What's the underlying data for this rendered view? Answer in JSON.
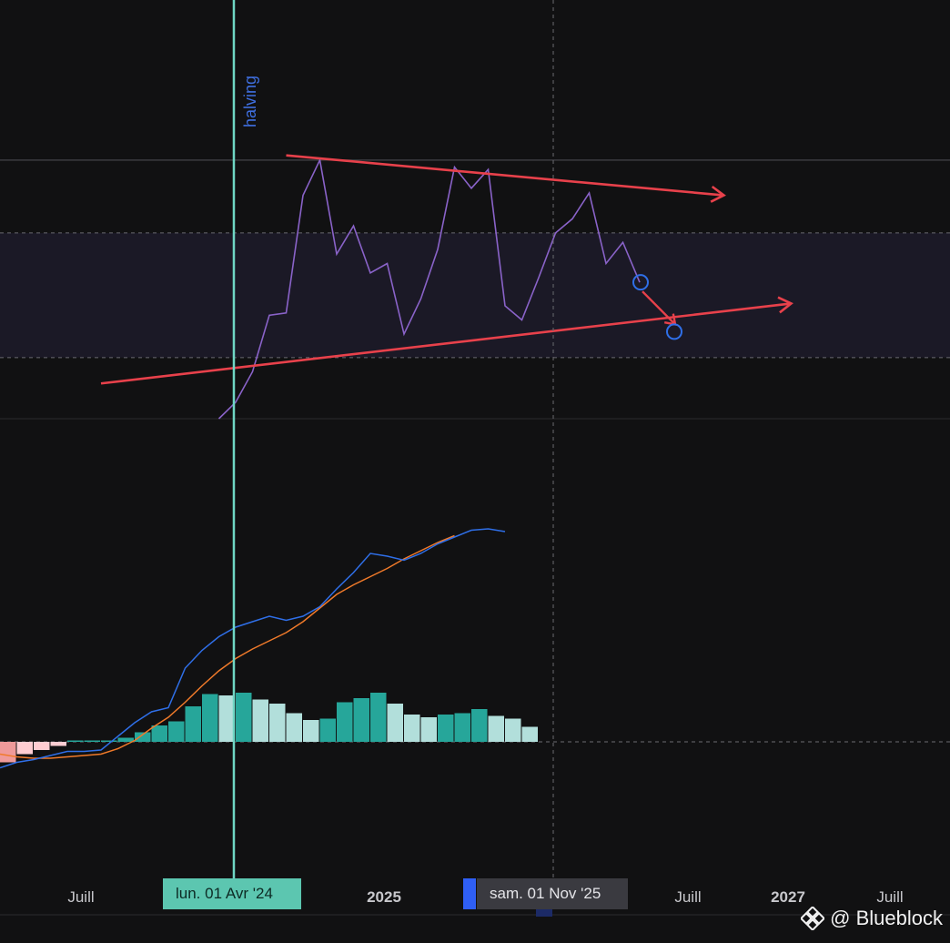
{
  "colors": {
    "background": "#111112",
    "oscillator_line": "#8a63c9",
    "oscillator_band": "#1b1926",
    "trendline": "#e8414b",
    "marker": "#2f6fe8",
    "halving_line": "#6fd6c4",
    "macd_line": "#2f6fe8",
    "signal_line": "#f07a2a",
    "hist_pos_strong": "#26a69a",
    "hist_pos_weak": "#b2dfdb",
    "hist_neg_weak": "#ffcdd2",
    "hist_neg_strong": "#ef9a9a"
  },
  "annotation": {
    "halving_label": "halving"
  },
  "x_axis": {
    "tick_labels": [
      {
        "text": "Juill",
        "bold": false
      },
      {
        "text": "2025",
        "bold": true
      },
      {
        "text": "Juill",
        "bold": false
      },
      {
        "text": "2027",
        "bold": true
      },
      {
        "text": "Juill",
        "bold": false
      }
    ],
    "halving_date_tag": "lun. 01 Avr '24",
    "cursor_date_tag": "sam. 01 Nov '25"
  },
  "watermark": {
    "text": "@ Blueblock",
    "icon": "binance-logo-icon"
  },
  "chart_data": [
    {
      "type": "line",
      "name": "oscillator",
      "x_unit": "month index (0 = Jan 2023)",
      "values": [
        [
          13,
          0.0
        ],
        [
          14,
          0.07
        ],
        [
          15,
          0.2
        ],
        [
          16,
          0.44
        ],
        [
          17,
          0.45
        ],
        [
          18,
          0.95
        ],
        [
          19,
          1.1
        ],
        [
          20,
          0.7
        ],
        [
          21,
          0.82
        ],
        [
          22,
          0.62
        ],
        [
          23,
          0.66
        ],
        [
          24,
          0.36
        ],
        [
          25,
          0.51
        ],
        [
          26,
          0.72
        ],
        [
          27,
          1.07
        ],
        [
          28,
          0.98
        ],
        [
          29,
          1.06
        ],
        [
          30,
          0.48
        ],
        [
          31,
          0.42
        ],
        [
          32,
          0.6
        ],
        [
          33,
          0.79
        ],
        [
          34,
          0.85
        ],
        [
          35,
          0.96
        ],
        [
          36,
          0.66
        ],
        [
          37,
          0.75
        ],
        [
          38,
          0.58
        ]
      ],
      "ylim": [
        0,
        1.2
      ],
      "reference_band": [
        0.26,
        0.79
      ],
      "reference_levels": [
        0.26,
        0.79,
        1.1
      ],
      "trendlines": [
        {
          "from": [
            17,
            1.12
          ],
          "to": [
            43,
            0.95
          ]
        },
        {
          "from": [
            6,
            0.15
          ],
          "to": [
            47,
            0.49
          ]
        }
      ],
      "projection": {
        "from": [
          38,
          0.58
        ],
        "to": [
          40,
          0.37
        ]
      }
    },
    {
      "type": "bar",
      "name": "macd",
      "x_unit": "month index (0 = Jan 2023)",
      "histogram": [
        {
          "x": 0,
          "value": -0.3,
          "sign": "neg_strong"
        },
        {
          "x": 1,
          "value": -0.18,
          "sign": "neg_weak"
        },
        {
          "x": 2,
          "value": -0.12,
          "sign": "neg_weak"
        },
        {
          "x": 3,
          "value": -0.06,
          "sign": "neg_weak"
        },
        {
          "x": 4,
          "value": 0.02,
          "sign": "pos_strong"
        },
        {
          "x": 5,
          "value": 0.02,
          "sign": "pos_strong"
        },
        {
          "x": 6,
          "value": 0.02,
          "sign": "pos_strong"
        },
        {
          "x": 7,
          "value": 0.06,
          "sign": "pos_strong"
        },
        {
          "x": 8,
          "value": 0.14,
          "sign": "pos_strong"
        },
        {
          "x": 9,
          "value": 0.24,
          "sign": "pos_strong"
        },
        {
          "x": 10,
          "value": 0.3,
          "sign": "pos_strong"
        },
        {
          "x": 11,
          "value": 0.52,
          "sign": "pos_strong"
        },
        {
          "x": 12,
          "value": 0.7,
          "sign": "pos_strong"
        },
        {
          "x": 13,
          "value": 0.68,
          "sign": "pos_weak"
        },
        {
          "x": 14,
          "value": 0.72,
          "sign": "pos_strong"
        },
        {
          "x": 15,
          "value": 0.62,
          "sign": "pos_weak"
        },
        {
          "x": 16,
          "value": 0.56,
          "sign": "pos_weak"
        },
        {
          "x": 17,
          "value": 0.42,
          "sign": "pos_weak"
        },
        {
          "x": 18,
          "value": 0.32,
          "sign": "pos_weak"
        },
        {
          "x": 19,
          "value": 0.34,
          "sign": "pos_strong"
        },
        {
          "x": 20,
          "value": 0.58,
          "sign": "pos_strong"
        },
        {
          "x": 21,
          "value": 0.64,
          "sign": "pos_strong"
        },
        {
          "x": 22,
          "value": 0.72,
          "sign": "pos_strong"
        },
        {
          "x": 23,
          "value": 0.56,
          "sign": "pos_weak"
        },
        {
          "x": 24,
          "value": 0.4,
          "sign": "pos_weak"
        },
        {
          "x": 25,
          "value": 0.36,
          "sign": "pos_weak"
        },
        {
          "x": 26,
          "value": 0.4,
          "sign": "pos_strong"
        },
        {
          "x": 27,
          "value": 0.42,
          "sign": "pos_strong"
        },
        {
          "x": 28,
          "value": 0.48,
          "sign": "pos_strong"
        },
        {
          "x": 29,
          "value": 0.38,
          "sign": "pos_weak"
        },
        {
          "x": 30,
          "value": 0.34,
          "sign": "pos_weak"
        },
        {
          "x": 31,
          "value": 0.22,
          "sign": "pos_weak"
        }
      ],
      "macd_line": [
        [
          0,
          -0.38
        ],
        [
          1,
          -0.3
        ],
        [
          2,
          -0.26
        ],
        [
          3,
          -0.2
        ],
        [
          4,
          -0.14
        ],
        [
          5,
          -0.14
        ],
        [
          6,
          -0.12
        ],
        [
          7,
          0.08
        ],
        [
          8,
          0.28
        ],
        [
          9,
          0.44
        ],
        [
          10,
          0.5
        ],
        [
          11,
          1.08
        ],
        [
          12,
          1.34
        ],
        [
          13,
          1.54
        ],
        [
          14,
          1.68
        ],
        [
          15,
          1.76
        ],
        [
          16,
          1.84
        ],
        [
          17,
          1.78
        ],
        [
          18,
          1.84
        ],
        [
          19,
          1.98
        ],
        [
          20,
          2.24
        ],
        [
          21,
          2.48
        ],
        [
          22,
          2.76
        ],
        [
          23,
          2.72
        ],
        [
          24,
          2.66
        ],
        [
          25,
          2.76
        ],
        [
          26,
          2.9
        ],
        [
          27,
          3.0
        ],
        [
          28,
          3.1
        ],
        [
          29,
          3.12
        ],
        [
          30,
          3.08
        ]
      ],
      "signal_line": [
        [
          0,
          -0.18
        ],
        [
          1,
          -0.22
        ],
        [
          2,
          -0.24
        ],
        [
          3,
          -0.24
        ],
        [
          4,
          -0.22
        ],
        [
          5,
          -0.2
        ],
        [
          6,
          -0.18
        ],
        [
          7,
          -0.1
        ],
        [
          8,
          0.02
        ],
        [
          9,
          0.2
        ],
        [
          10,
          0.36
        ],
        [
          11,
          0.58
        ],
        [
          12,
          0.82
        ],
        [
          13,
          1.04
        ],
        [
          14,
          1.22
        ],
        [
          15,
          1.36
        ],
        [
          16,
          1.48
        ],
        [
          17,
          1.6
        ],
        [
          18,
          1.76
        ],
        [
          19,
          1.96
        ],
        [
          20,
          2.16
        ],
        [
          21,
          2.3
        ],
        [
          22,
          2.42
        ],
        [
          23,
          2.54
        ],
        [
          24,
          2.68
        ],
        [
          25,
          2.8
        ],
        [
          26,
          2.92
        ],
        [
          27,
          3.02
        ]
      ],
      "ylim": [
        -0.6,
        3.4
      ]
    }
  ]
}
